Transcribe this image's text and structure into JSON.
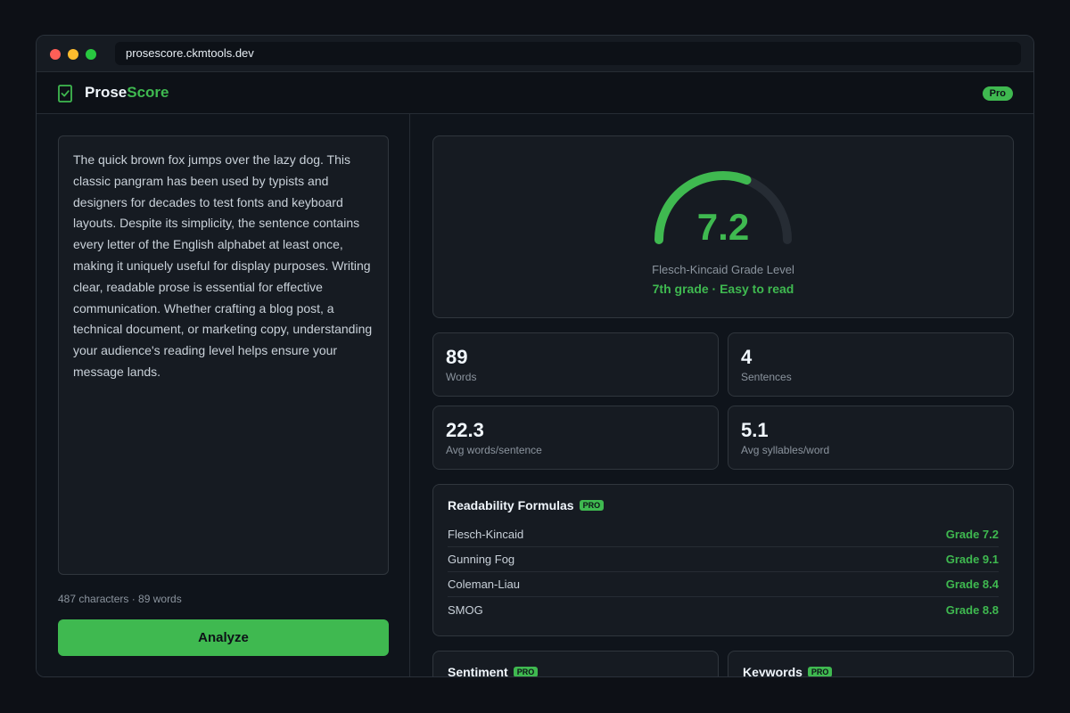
{
  "browser": {
    "url": "prosescore.ckmtools.dev"
  },
  "app": {
    "brand_part1": "Prose",
    "brand_part2": "Score",
    "plan_badge": "Pro"
  },
  "editor": {
    "text": "The quick brown fox jumps over the lazy dog. This classic pangram has been used by typists and designers for decades to test fonts and keyboard layouts. Despite its simplicity, the sentence contains every letter of the English alphabet at least once, making it uniquely useful for display purposes. Writing clear, readable prose is essential for effective communication. Whether crafting a blog post, a technical document, or marketing copy, understanding your audience's reading level helps ensure your message lands.",
    "counter": "487 characters · 89 words",
    "analyze_label": "Analyze"
  },
  "gauge": {
    "value": "7.2",
    "level_fraction": 0.62,
    "label": "Flesch-Kincaid Grade Level",
    "description": "7th grade · Easy to read"
  },
  "stats": [
    {
      "value": "89",
      "label": "Words"
    },
    {
      "value": "4",
      "label": "Sentences"
    },
    {
      "value": "22.3",
      "label": "Avg words/sentence"
    },
    {
      "value": "5.1",
      "label": "Avg syllables/word"
    }
  ],
  "formulas": {
    "title": "Readability Formulas",
    "pro_tag": "PRO",
    "rows": [
      {
        "name": "Flesch-Kincaid",
        "grade": "Grade 7.2"
      },
      {
        "name": "Gunning Fog",
        "grade": "Grade 9.1"
      },
      {
        "name": "Coleman-Liau",
        "grade": "Grade 8.4"
      },
      {
        "name": "SMOG",
        "grade": "Grade 8.8"
      }
    ]
  },
  "sentiment": {
    "title": "Sentiment",
    "pro_tag": "PRO"
  },
  "keywords": {
    "title": "Keywords",
    "pro_tag": "PRO"
  },
  "colors": {
    "accent": "#3fb950",
    "background": "#0d1117",
    "card": "#161b22"
  }
}
